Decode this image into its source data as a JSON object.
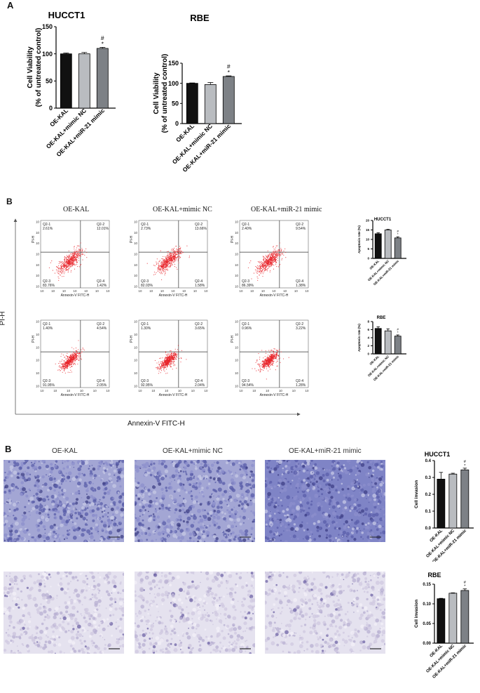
{
  "panel_labels": {
    "a": "A",
    "b1": "B",
    "b2": "B"
  },
  "legend_a": {
    "ylabel_line1": "Cell Viability",
    "ylabel_line2": "(% of untreated control)",
    "categories": [
      "OE-KAL",
      "OE-KAL+mimic NC",
      "OE-KAL+miR-21 mimic"
    ]
  },
  "flow": {
    "column_titles": [
      "OE-KAL",
      "OE-KAL+mimic NC",
      "OE-KAL+miR-21 mimic"
    ],
    "x_axis_title": "Annexin-V FITC-H",
    "y_axis_title": "PI-H",
    "small_xlabel": "Annexin-V FITC-H",
    "small_ylabel": "PI-H",
    "plots": [
      {
        "q1": "Q2-1",
        "q1v": "2.61%",
        "q2": "Q2-2",
        "q2v": "12.01%",
        "q3": "Q2-3",
        "q3v": "83.76%",
        "q4": "Q2-4",
        "q4v": "1.42%"
      },
      {
        "q1": "Q2-1",
        "q1v": "2.73%",
        "q2": "Q2-2",
        "q2v": "13.66%",
        "q3": "Q2-3",
        "q3v": "82.03%",
        "q4": "Q2-4",
        "q4v": "1.58%"
      },
      {
        "q1": "Q2-1",
        "q1v": "2.40%",
        "q2": "Q2-2",
        "q2v": "9.54%",
        "q3": "Q2-3",
        "q3v": "86.39%",
        "q4": "Q2-4",
        "q4v": "1.38%"
      },
      {
        "q1": "Q2-1",
        "q1v": "1.40%",
        "q2": "Q2-2",
        "q2v": "4.54%",
        "q3": "Q2-3",
        "q3v": "91.95%",
        "q4": "Q2-4",
        "q4v": "2.05%"
      },
      {
        "q1": "Q2-1",
        "q1v": "1.30%",
        "q2": "Q2-2",
        "q2v": "3.65%",
        "q3": "Q2-3",
        "q3v": "92.95%",
        "q4": "Q2-4",
        "q4v": "2.04%"
      },
      {
        "q1": "Q2-1",
        "q1v": "0.96%",
        "q2": "Q2-2",
        "q2v": "3.22%",
        "q3": "Q2-3",
        "q3v": "94.54%",
        "q4": "Q2-4",
        "q4v": "1.28%"
      }
    ]
  },
  "invasion": {
    "column_titles": [
      "OE-KAL",
      "OE-KAL+mimic NC",
      "OE-KAL+miR-21 mimic"
    ]
  },
  "chart_data": [
    {
      "type": "bar",
      "title": "HUCCT1",
      "ylabel": "Cell Viability (% of untreated control)",
      "categories": [
        "OE-KAL",
        "OE-KAL+mimic NC",
        "OE-KAL+miR-21 mimic"
      ],
      "values": [
        100,
        100,
        110
      ],
      "errors": [
        1.5,
        2.5,
        2.0
      ],
      "ylim": [
        0,
        150
      ],
      "yticks": [
        "0",
        "50",
        "100",
        "150"
      ],
      "annotations": [
        "",
        "",
        "*\n#"
      ],
      "colors": [
        "#111111",
        "#b9bcc0",
        "#7d8186"
      ]
    },
    {
      "type": "bar",
      "title": "RBE",
      "ylabel": "Cell Viability (% of untreated control)",
      "categories": [
        "OE-KAL",
        "OE-KAL+mimic NC",
        "OE-KAL+miR-21 mimic"
      ],
      "values": [
        100,
        97,
        117
      ],
      "errors": [
        1.0,
        5.0,
        1.5
      ],
      "ylim": [
        0,
        150
      ],
      "yticks": [
        "0",
        "50",
        "100",
        "150"
      ],
      "annotations": [
        "",
        "",
        "*\n#"
      ],
      "colors": [
        "#111111",
        "#b9bcc0",
        "#7d8186"
      ]
    },
    {
      "type": "bar",
      "title": "HUCCT1",
      "ylabel": "Apoptosis rate (%)",
      "categories": [
        "OE-KAL",
        "OE-KAL+mimic NC",
        "OE-KAL+miR-21 mimic"
      ],
      "values": [
        13,
        15,
        10.8
      ],
      "errors": [
        0.5,
        0.3,
        0.6
      ],
      "ylim": [
        0,
        20
      ],
      "yticks": [
        "0",
        "5",
        "10",
        "15",
        "20"
      ],
      "annotations": [
        "",
        "",
        "*\n#"
      ],
      "colors": [
        "#111111",
        "#b9bcc0",
        "#7d8186"
      ]
    },
    {
      "type": "bar",
      "title": "RBE",
      "ylabel": "Apoptosis rate (%)",
      "categories": [
        "OE-KAL",
        "OE-KAL+mimic NC",
        "OE-KAL+miR-21 mimic"
      ],
      "values": [
        6.3,
        5.7,
        4.4
      ],
      "errors": [
        0.4,
        0.5,
        0.3
      ],
      "ylim": [
        0,
        8
      ],
      "yticks": [
        "0",
        "2",
        "4",
        "6",
        "8"
      ],
      "annotations": [
        "",
        "",
        "*\n#"
      ],
      "colors": [
        "#111111",
        "#b9bcc0",
        "#7d8186"
      ]
    },
    {
      "type": "bar",
      "title": "HUCCT1",
      "ylabel": "Cell invasion",
      "categories": [
        "OE-KAL",
        "OE-KAL+mimic NC",
        "OE-KAL+miR-21 mimic"
      ],
      "values": [
        0.29,
        0.32,
        0.345
      ],
      "errors": [
        0.04,
        0.005,
        0.01
      ],
      "ylim": [
        0,
        0.4
      ],
      "yticks": [
        "0.0",
        "0.1",
        "0.2",
        "0.3",
        "0.4"
      ],
      "annotations": [
        "",
        "",
        "*\n#"
      ],
      "colors": [
        "#111111",
        "#b9bcc0",
        "#7d8186"
      ]
    },
    {
      "type": "bar",
      "title": "RBE",
      "ylabel": "Cell invasion",
      "categories": [
        "OE-KAL",
        "OE-KAL+mimic NC",
        "OE-KAL+miR-21 mimic"
      ],
      "values": [
        0.113,
        0.127,
        0.134
      ],
      "errors": [
        0.001,
        0.001,
        0.004
      ],
      "ylim": [
        0,
        0.15
      ],
      "yticks": [
        "0.00",
        "0.05",
        "0.10",
        "0.15"
      ],
      "annotations": [
        "",
        "",
        "*\n#"
      ],
      "colors": [
        "#111111",
        "#b9bcc0",
        "#7d8186"
      ]
    }
  ]
}
